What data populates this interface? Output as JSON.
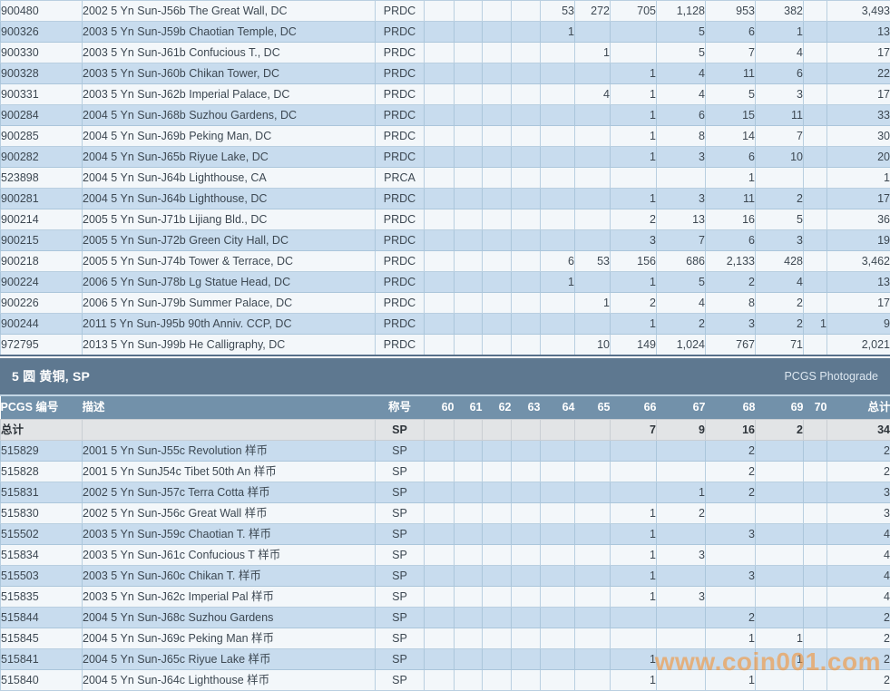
{
  "palette": {
    "row_light": "#f3f7fa",
    "row_blue": "#c8dcee",
    "grid_line": "#b9cfe0",
    "section_band_bg": "#5e7890",
    "header_row_bg": "#7291aa",
    "totals_row_bg": "#e2e4e6",
    "pcgs_number_color": "#bd7150",
    "text_color": "#3d4852",
    "watermark_color": "#f39439"
  },
  "header": {
    "number": "PCGS 编号",
    "description": "描述",
    "designation": "称号",
    "total": "总计"
  },
  "grade_columns": [
    "60",
    "61",
    "62",
    "63",
    "64",
    "65",
    "66",
    "67",
    "68",
    "69",
    "70"
  ],
  "table1": {
    "rows": [
      {
        "number": "900480",
        "description": "2002 5 Yn Sun-J56b The Great Wall, DC",
        "designation": "PRDC",
        "grades": {
          "64": "53",
          "65": "272",
          "66": "705",
          "67": "1,128",
          "68": "953",
          "69": "382"
        },
        "total": "3,493"
      },
      {
        "number": "900326",
        "description": "2003 5 Yn Sun-J59b Chaotian Temple, DC",
        "designation": "PRDC",
        "grades": {
          "64": "1",
          "67": "5",
          "68": "6",
          "69": "1"
        },
        "total": "13"
      },
      {
        "number": "900330",
        "description": "2003 5 Yn Sun-J61b Confucious T., DC",
        "designation": "PRDC",
        "grades": {
          "65": "1",
          "67": "5",
          "68": "7",
          "69": "4"
        },
        "total": "17"
      },
      {
        "number": "900328",
        "description": "2003 5 Yn Sun-J60b Chikan Tower, DC",
        "designation": "PRDC",
        "grades": {
          "66": "1",
          "67": "4",
          "68": "11",
          "69": "6"
        },
        "total": "22"
      },
      {
        "number": "900331",
        "description": "2003 5 Yn Sun-J62b Imperial Palace, DC",
        "designation": "PRDC",
        "grades": {
          "65": "4",
          "66": "1",
          "67": "4",
          "68": "5",
          "69": "3"
        },
        "total": "17"
      },
      {
        "number": "900284",
        "description": "2004 5 Yn Sun-J68b Suzhou Gardens, DC",
        "designation": "PRDC",
        "grades": {
          "66": "1",
          "67": "6",
          "68": "15",
          "69": "11"
        },
        "total": "33"
      },
      {
        "number": "900285",
        "description": "2004 5 Yn Sun-J69b Peking Man, DC",
        "designation": "PRDC",
        "grades": {
          "66": "1",
          "67": "8",
          "68": "14",
          "69": "7"
        },
        "total": "30"
      },
      {
        "number": "900282",
        "description": "2004 5 Yn Sun-J65b Riyue Lake, DC",
        "designation": "PRDC",
        "grades": {
          "66": "1",
          "67": "3",
          "68": "6",
          "69": "10"
        },
        "total": "20"
      },
      {
        "number": "523898",
        "description": "2004 5 Yn Sun-J64b Lighthouse, CA",
        "designation": "PRCA",
        "grades": {
          "68": "1"
        },
        "total": "1"
      },
      {
        "number": "900281",
        "description": "2004 5 Yn Sun-J64b Lighthouse, DC",
        "designation": "PRDC",
        "grades": {
          "66": "1",
          "67": "3",
          "68": "11",
          "69": "2"
        },
        "total": "17"
      },
      {
        "number": "900214",
        "description": "2005 5 Yn Sun-J71b Lijiang Bld., DC",
        "designation": "PRDC",
        "grades": {
          "66": "2",
          "67": "13",
          "68": "16",
          "69": "5"
        },
        "total": "36"
      },
      {
        "number": "900215",
        "description": "2005 5 Yn Sun-J72b Green City Hall, DC",
        "designation": "PRDC",
        "grades": {
          "66": "3",
          "67": "7",
          "68": "6",
          "69": "3"
        },
        "total": "19"
      },
      {
        "number": "900218",
        "description": "2005 5 Yn Sun-J74b Tower & Terrace, DC",
        "designation": "PRDC",
        "grades": {
          "64": "6",
          "65": "53",
          "66": "156",
          "67": "686",
          "68": "2,133",
          "69": "428"
        },
        "total": "3,462"
      },
      {
        "number": "900224",
        "description": "2006 5 Yn Sun-J78b Lg Statue Head, DC",
        "designation": "PRDC",
        "grades": {
          "64": "1",
          "66": "1",
          "67": "5",
          "68": "2",
          "69": "4"
        },
        "total": "13"
      },
      {
        "number": "900226",
        "description": "2006 5 Yn Sun-J79b Summer Palace, DC",
        "designation": "PRDC",
        "grades": {
          "65": "1",
          "66": "2",
          "67": "4",
          "68": "8",
          "69": "2"
        },
        "total": "17"
      },
      {
        "number": "900244",
        "description": "2011 5 Yn Sun-J95b 90th Anniv. CCP, DC",
        "designation": "PRDC",
        "grades": {
          "66": "1",
          "67": "2",
          "68": "3",
          "69": "2",
          "70": "1"
        },
        "total": "9"
      },
      {
        "number": "972795",
        "description": "2013 5 Yn Sun-J99b He Calligraphy, DC",
        "designation": "PRDC",
        "grades": {
          "65": "10",
          "66": "149",
          "67": "1,024",
          "68": "767",
          "69": "71"
        },
        "total": "2,021"
      }
    ]
  },
  "section": {
    "title": "5 圆 黄铜, SP",
    "photograde": "PCGS Photograde"
  },
  "table2": {
    "totals": {
      "label": "总计",
      "designation": "SP",
      "grades": {
        "66": "7",
        "67": "9",
        "68": "16",
        "69": "2"
      },
      "total": "34"
    },
    "rows": [
      {
        "number": "515829",
        "description": "2001 5 Yn Sun-J55c Revolution 样币",
        "designation": "SP",
        "grades": {
          "68": "2"
        },
        "total": "2"
      },
      {
        "number": "515828",
        "description": "2001 5 Yn SunJ54c Tibet 50th An 样币",
        "designation": "SP",
        "grades": {
          "68": "2"
        },
        "total": "2"
      },
      {
        "number": "515831",
        "description": "2002 5 Yn Sun-J57c Terra Cotta 样币",
        "designation": "SP",
        "grades": {
          "67": "1",
          "68": "2"
        },
        "total": "3"
      },
      {
        "number": "515830",
        "description": "2002 5 Yn Sun-J56c Great Wall 样币",
        "designation": "SP",
        "grades": {
          "66": "1",
          "67": "2"
        },
        "total": "3"
      },
      {
        "number": "515502",
        "description": "2003 5 Yn Sun-J59c Chaotian T. 样币",
        "designation": "SP",
        "grades": {
          "66": "1",
          "68": "3"
        },
        "total": "4"
      },
      {
        "number": "515834",
        "description": "2003 5 Yn Sun-J61c Confucious T 样币",
        "designation": "SP",
        "grades": {
          "66": "1",
          "67": "3"
        },
        "total": "4"
      },
      {
        "number": "515503",
        "description": "2003 5 Yn Sun-J60c Chikan T. 样币",
        "designation": "SP",
        "grades": {
          "66": "1",
          "68": "3"
        },
        "total": "4"
      },
      {
        "number": "515835",
        "description": "2003 5 Yn Sun-J62c Imperial Pal 样币",
        "designation": "SP",
        "grades": {
          "66": "1",
          "67": "3"
        },
        "total": "4"
      },
      {
        "number": "515844",
        "description": "2004 5 Yn Sun-J68c Suzhou Gardens",
        "designation": "SP",
        "grades": {
          "68": "2"
        },
        "total": "2"
      },
      {
        "number": "515845",
        "description": "2004 5 Yn Sun-J69c Peking Man 样币",
        "designation": "SP",
        "grades": {
          "68": "1",
          "69": "1"
        },
        "total": "2"
      },
      {
        "number": "515841",
        "description": "2004 5 Yn Sun-J65c Riyue Lake 样币",
        "designation": "SP",
        "grades": {
          "66": "1",
          "69": "1"
        },
        "total": "2"
      },
      {
        "number": "515840",
        "description": "2004 5 Yn Sun-J64c Lighthouse 样币",
        "designation": "SP",
        "grades": {
          "66": "1",
          "68": "1"
        },
        "total": "2"
      }
    ]
  },
  "watermark": "www.coin001.com"
}
